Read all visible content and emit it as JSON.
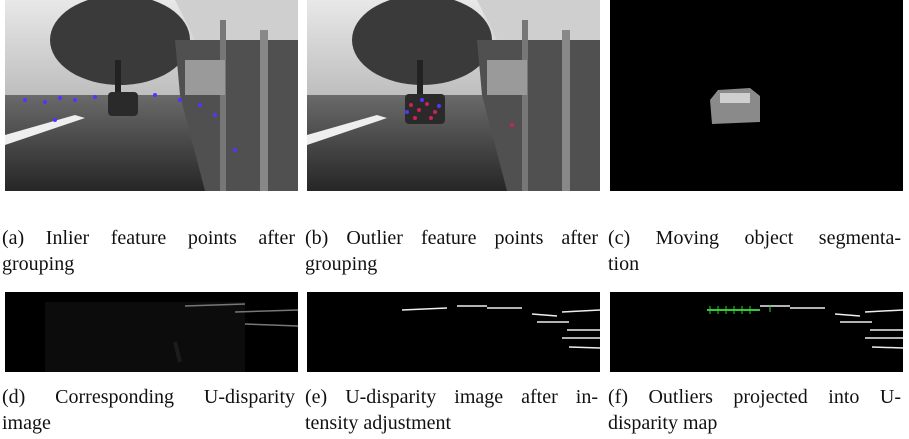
{
  "figure": {
    "panels": [
      {
        "caption": [
          "(a) Inlier feature points after",
          "grouping"
        ]
      },
      {
        "caption": [
          "(b) Outlier feature points after",
          "grouping"
        ]
      },
      {
        "caption": [
          "(c) Moving object segmenta-",
          "tion"
        ]
      },
      {
        "caption": [
          "(d) Corresponding U-disparity",
          "image"
        ]
      },
      {
        "caption": [
          "(e) U-disparity image after in-",
          "tensity adjustment"
        ]
      },
      {
        "caption": [
          "(f) Outliers projected into U-",
          "disparity map"
        ]
      }
    ]
  }
}
